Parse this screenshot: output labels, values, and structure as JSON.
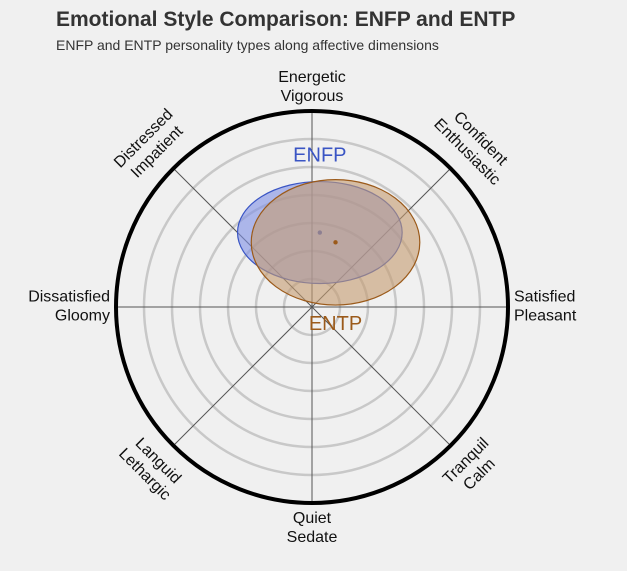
{
  "chart_data": {
    "type": "scatter",
    "title": "Emotional Style Comparison: ENFP and ENTP",
    "subtitle": "ENFP and ENTP personality types along affective dimensions",
    "axes": [
      {
        "lines": [
          "Energetic",
          "Vigorous"
        ],
        "angle": 90
      },
      {
        "lines": [
          "Confident",
          "Enthusiastic"
        ],
        "angle": 45
      },
      {
        "lines": [
          "Satisfied",
          "Pleasant"
        ],
        "angle": 0
      },
      {
        "lines": [
          "Tranquil",
          "Calm"
        ],
        "angle": -45
      },
      {
        "lines": [
          "Quiet",
          "Sedate"
        ],
        "angle": -90
      },
      {
        "lines": [
          "Languid",
          "Lethargic"
        ],
        "angle": -135
      },
      {
        "lines": [
          "Dissatisfied",
          "Gloomy"
        ],
        "angle": 180
      },
      {
        "lines": [
          "Distressed",
          "Impatient"
        ],
        "angle": 135
      }
    ],
    "range": [
      -1,
      1
    ],
    "grid_rings": 6,
    "series": [
      {
        "name": "ENFP",
        "center": [
          0.04,
          0.38
        ],
        "radius": [
          0.42,
          0.26
        ],
        "color": "#3a55c4",
        "fill": "#7f8fe6",
        "label_pos": [
          0.04,
          0.77
        ]
      },
      {
        "name": "ENTP",
        "center": [
          0.12,
          0.33
        ],
        "radius": [
          0.43,
          0.32
        ],
        "color": "#9b5a1a",
        "fill": "#c49b70",
        "label_pos": [
          0.12,
          -0.09
        ]
      }
    ]
  }
}
